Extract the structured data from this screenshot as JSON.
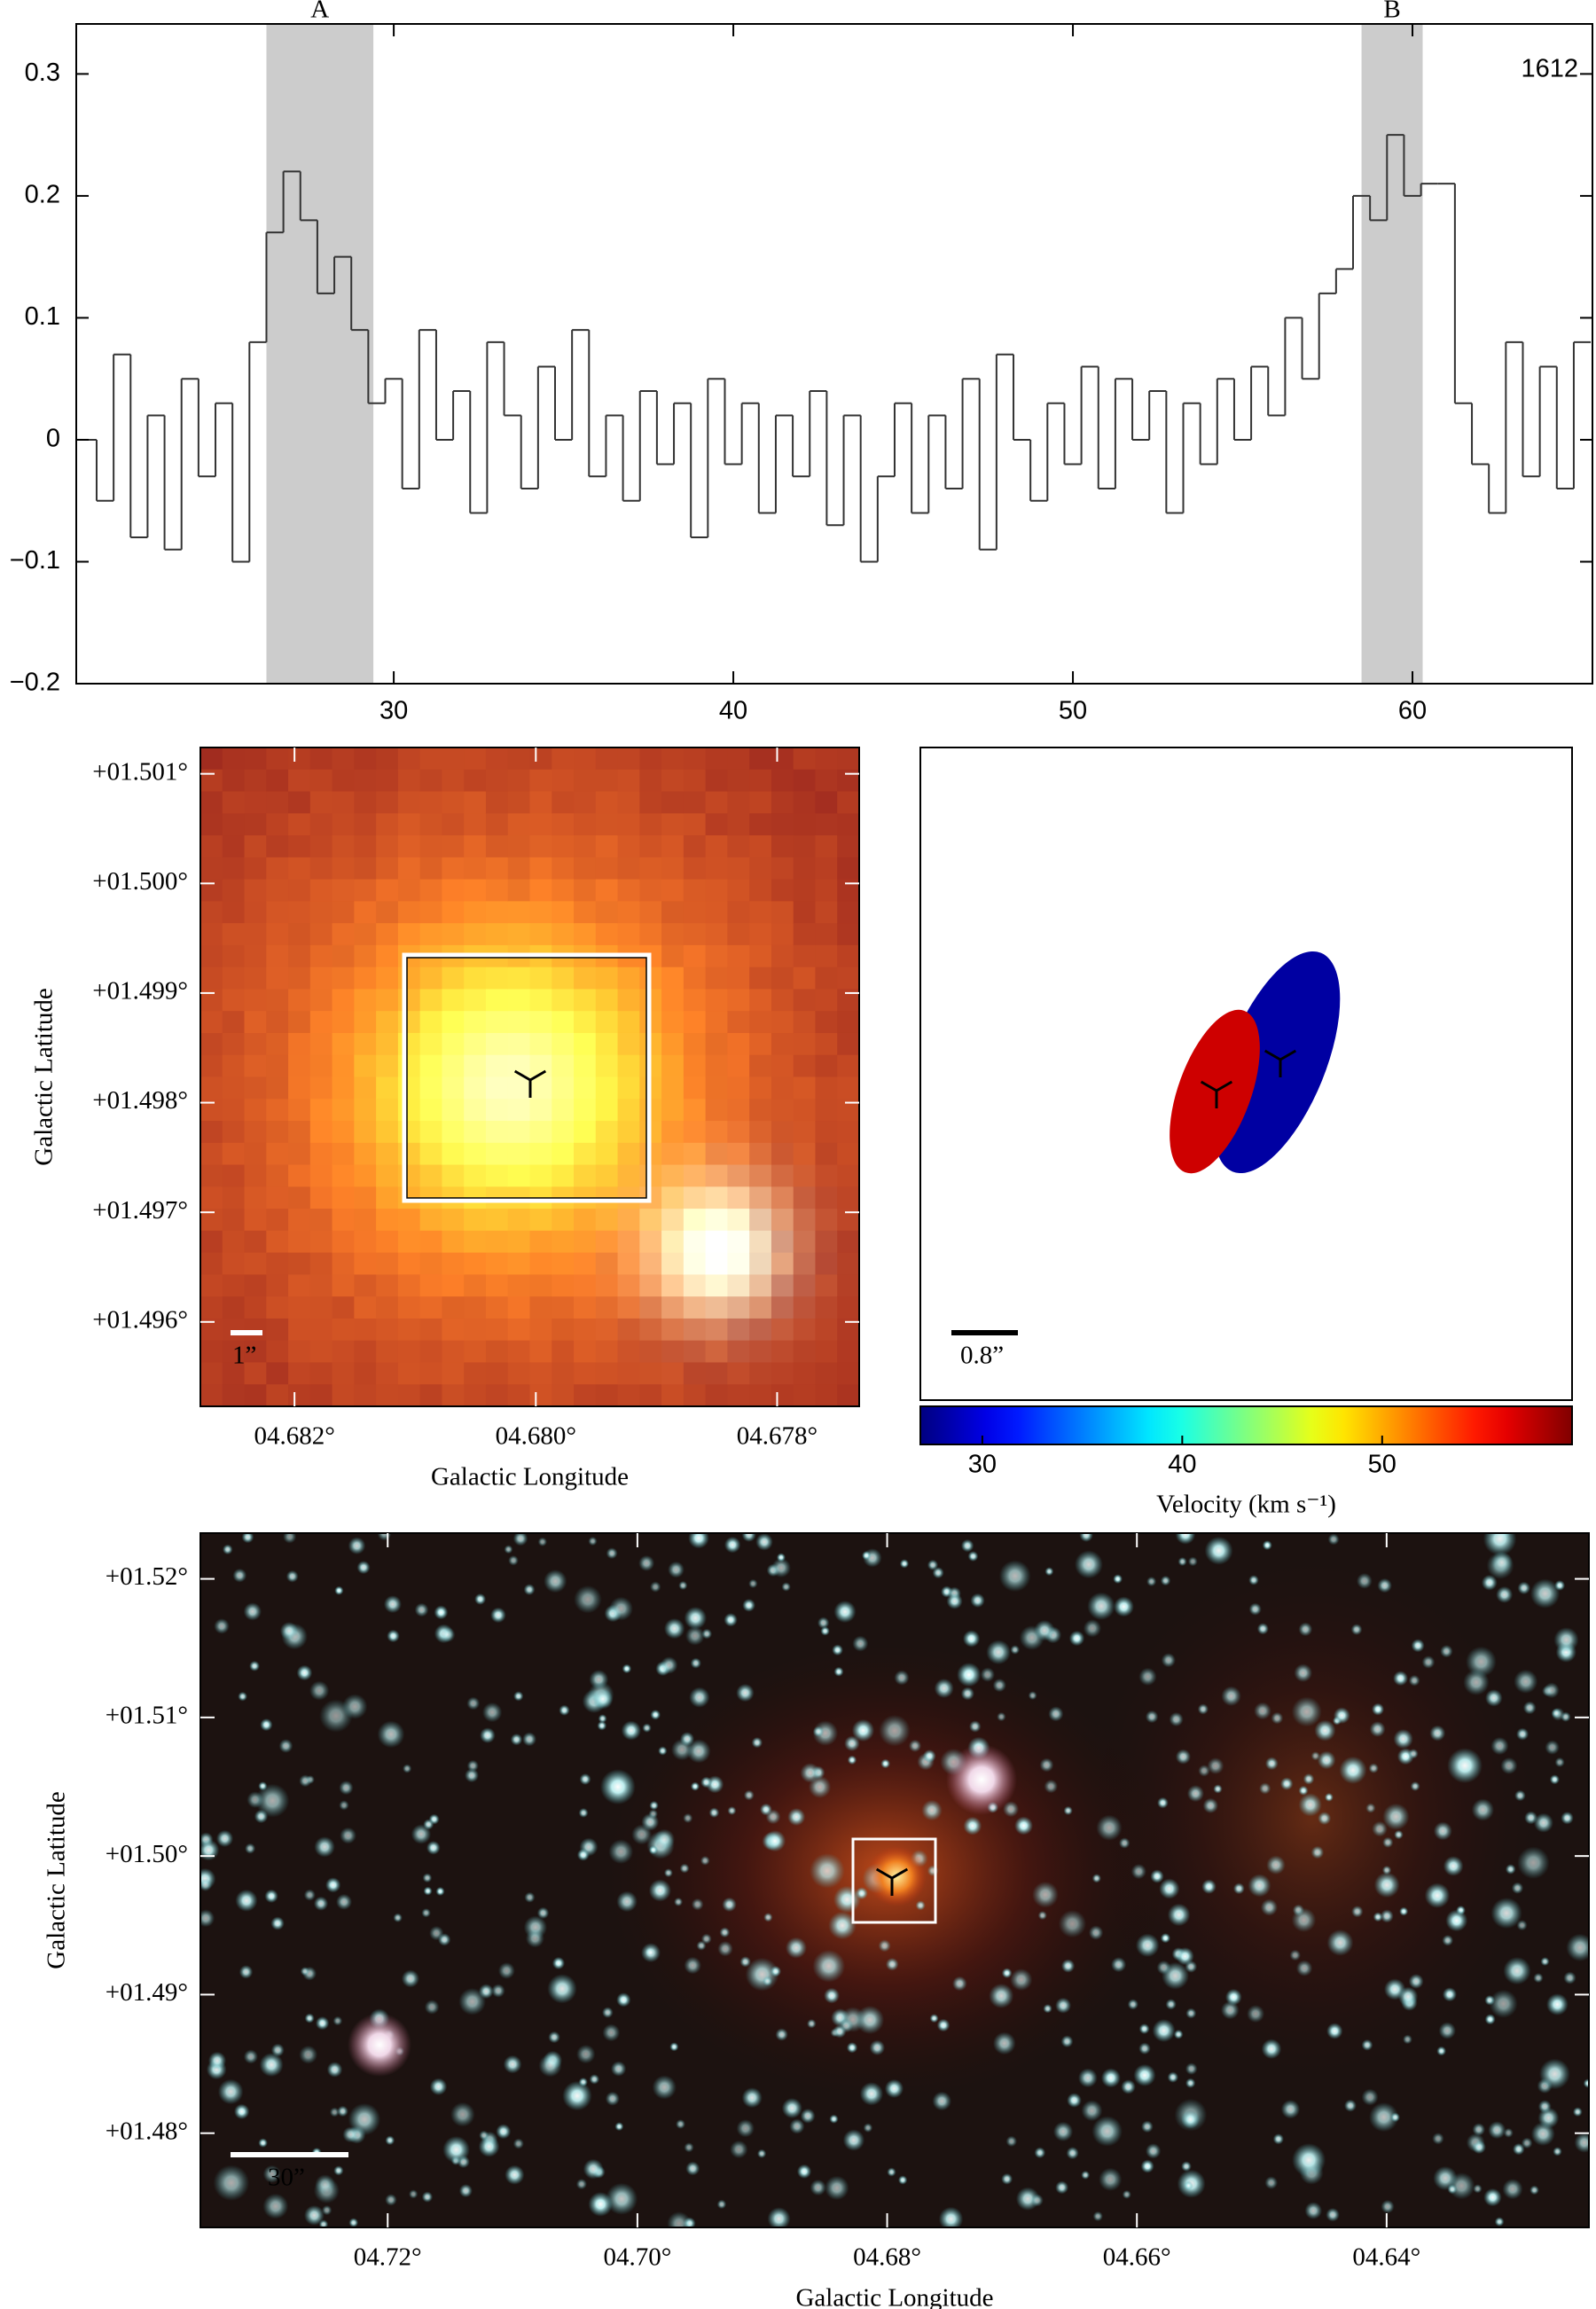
{
  "chart_data": [
    {
      "type": "step",
      "annotations": [
        "1612"
      ],
      "spans": [
        {
          "label": "A",
          "range": [
            26.25,
            29.4
          ]
        },
        {
          "label": "B",
          "range": [
            58.5,
            60.3
          ]
        }
      ],
      "xlim": [
        20.65,
        65.3
      ],
      "xticks": [
        30,
        40,
        50,
        60
      ],
      "ylim": [
        -0.2,
        0.341
      ],
      "yticks": [
        {
          "value": -0.2,
          "label": "−0.2"
        },
        {
          "value": -0.1,
          "label": "−0.1"
        },
        0,
        0.1,
        0.2,
        0.3
      ],
      "color": "#333333",
      "span_color": "#cccccc",
      "x": [
        21,
        21.5,
        22,
        22.5,
        23,
        23.5,
        24,
        24.5,
        25,
        25.5,
        26,
        26.5,
        27,
        27.5,
        28,
        28.5,
        29,
        29.5,
        30,
        30.5,
        31,
        31.5,
        32,
        32.5,
        33,
        33.5,
        34,
        34.5,
        35,
        35.5,
        36,
        36.5,
        37,
        37.5,
        38,
        38.5,
        39,
        39.5,
        40,
        40.5,
        41,
        41.5,
        42,
        42.5,
        43,
        43.5,
        44,
        44.5,
        45,
        45.5,
        46,
        46.5,
        47,
        47.5,
        48,
        48.5,
        49,
        49.5,
        50,
        50.5,
        51,
        51.5,
        52,
        52.5,
        53,
        53.5,
        54,
        54.5,
        55,
        55.5,
        56,
        56.5,
        57,
        57.5,
        58,
        58.5,
        59,
        59.5,
        60,
        60.5,
        61,
        61.5,
        62,
        62.5,
        63,
        63.5,
        64,
        64.5,
        65
      ],
      "values": [
        0.0,
        -0.05,
        0.07,
        -0.08,
        0.02,
        -0.09,
        0.05,
        -0.03,
        0.03,
        -0.1,
        0.08,
        0.17,
        0.22,
        0.18,
        0.12,
        0.15,
        0.09,
        0.03,
        0.05,
        -0.04,
        0.09,
        0.0,
        0.04,
        -0.06,
        0.08,
        0.02,
        -0.04,
        0.06,
        0.0,
        0.09,
        -0.03,
        0.02,
        -0.05,
        0.04,
        -0.02,
        0.03,
        -0.08,
        0.05,
        -0.02,
        0.03,
        -0.06,
        0.02,
        -0.03,
        0.04,
        -0.07,
        0.02,
        -0.1,
        -0.03,
        0.03,
        -0.06,
        0.02,
        -0.04,
        0.05,
        -0.09,
        0.07,
        0.0,
        -0.05,
        0.03,
        -0.02,
        0.06,
        -0.04,
        0.05,
        0.0,
        0.04,
        -0.06,
        0.03,
        -0.02,
        0.05,
        0.0,
        0.06,
        0.02,
        0.1,
        0.05,
        0.12,
        0.14,
        0.2,
        0.18,
        0.25,
        0.2,
        0.21,
        0.21,
        0.03,
        -0.02,
        -0.06,
        0.08,
        -0.03,
        0.06,
        -0.04,
        0.08
      ]
    },
    {
      "type": "image",
      "xlabel": "Galactic Longitude",
      "ylabel": "Galactic Latitude",
      "xlim": [
        4.68278,
        4.67732
      ],
      "xticks": [
        {
          "value": 4.682,
          "label": "04.682°"
        },
        {
          "value": 4.68,
          "label": "04.680°"
        },
        {
          "value": 4.678,
          "label": "04.678°"
        }
      ],
      "ylim": [
        1.49523,
        1.50124
      ],
      "yticks": [
        {
          "value": 1.496,
          "label": "+01.496°"
        },
        {
          "value": 1.497,
          "label": "+01.497°"
        },
        {
          "value": 1.498,
          "label": "+01.498°"
        },
        {
          "value": 1.499,
          "label": "+01.499°"
        },
        {
          "value": 1.5,
          "label": "+01.500°"
        },
        {
          "value": 1.501,
          "label": "+01.501°"
        }
      ],
      "scale_bar": "1”"
    },
    {
      "type": "ellipse",
      "values": [
        57,
        28
      ],
      "scale_bar": "0.8”",
      "colorbar": {
        "label": "Velocity (km s⁻¹)",
        "lim": [
          26.9,
          59.5
        ],
        "ticks": [
          30,
          40,
          50
        ]
      }
    },
    {
      "type": "image",
      "xlabel": "Galactic Longitude",
      "ylabel": "Galactic Latitude",
      "xlim": [
        4.735,
        4.6238
      ],
      "xticks": [
        {
          "value": 4.72,
          "label": "04.72°"
        },
        {
          "value": 4.7,
          "label": "04.70°"
        },
        {
          "value": 4.68,
          "label": "04.68°"
        },
        {
          "value": 4.66,
          "label": "04.66°"
        },
        {
          "value": 4.64,
          "label": "04.64°"
        }
      ],
      "ylim": [
        1.4732,
        1.5233
      ],
      "yticks": [
        {
          "value": 1.48,
          "label": "+01.48°"
        },
        {
          "value": 1.49,
          "label": "+01.49°"
        },
        {
          "value": 1.5,
          "label": "+01.50°"
        },
        {
          "value": 1.51,
          "label": "+01.51°"
        },
        {
          "value": 1.52,
          "label": "+01.52°"
        }
      ],
      "scale_bar": "30”"
    }
  ]
}
